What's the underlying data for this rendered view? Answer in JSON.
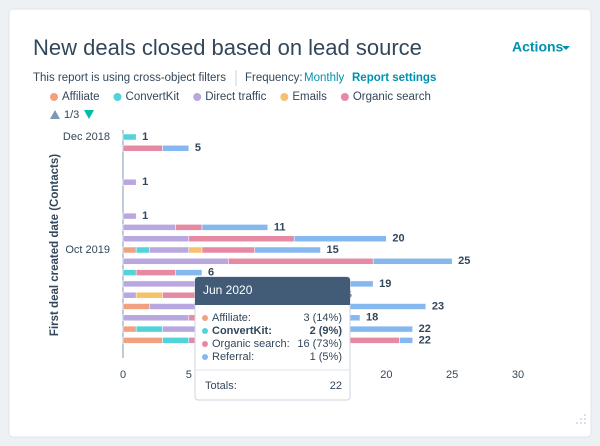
{
  "actions": "Actions",
  "report_note": "This report is using cross-object filters",
  "frequency_label": "Frequency:",
  "frequency_value": "Monthly",
  "report_settings": "Report settings",
  "legend_page": "1/3",
  "chart_data": {
    "type": "stacked-bar-horizontal",
    "title": "New deals closed based on lead source",
    "y_label": "First deal created date (Contacts)",
    "categories": [
      "Dec 2018",
      null,
      null,
      null,
      null,
      null,
      null,
      null,
      null,
      null,
      "Oct 2019",
      null,
      null,
      null,
      null,
      null,
      null,
      null,
      null
    ],
    "series": [
      {
        "name": "Affiliate",
        "color": "#f2a180",
        "values": [
          0,
          0,
          0,
          0,
          0,
          0,
          0,
          0,
          0,
          0,
          1,
          0,
          0,
          0,
          0,
          2,
          0,
          1,
          3
        ]
      },
      {
        "name": "ConvertKit",
        "color": "#51d3d9",
        "values": [
          1,
          0,
          0,
          0,
          0,
          0,
          0,
          0,
          0,
          0,
          1,
          0,
          1,
          0,
          0,
          0,
          0,
          2,
          2
        ]
      },
      {
        "name": "Direct traffic",
        "color": "#b9a8e0",
        "values": [
          0,
          0,
          0,
          0,
          1,
          0,
          0,
          1,
          4,
          5,
          3,
          8,
          0,
          6,
          1,
          4,
          5,
          3,
          0
        ]
      },
      {
        "name": "Emails",
        "color": "#f5c26b",
        "values": [
          0,
          0,
          0,
          0,
          0,
          0,
          0,
          0,
          0,
          0,
          1,
          0,
          0,
          0,
          2,
          1,
          0,
          0,
          0
        ]
      },
      {
        "name": "Organic search",
        "color": "#e68aa3",
        "values": [
          0,
          3,
          0,
          0,
          0,
          0,
          0,
          0,
          2,
          8,
          4,
          11,
          3,
          5,
          5,
          8,
          7,
          8,
          16
        ]
      },
      {
        "name": "Referral",
        "color": "#86b8f0",
        "values": [
          0,
          2,
          0,
          0,
          0,
          0,
          0,
          0,
          5,
          7,
          5,
          6,
          2,
          8,
          8,
          8,
          6,
          8,
          1
        ]
      }
    ],
    "legend_count": 5,
    "totals": [
      1,
      5,
      null,
      null,
      1,
      null,
      null,
      1,
      11,
      20,
      15,
      25,
      6,
      19,
      16,
      23,
      18,
      22,
      22
    ],
    "xlim": [
      0,
      30
    ],
    "xticks": [
      0,
      5,
      10,
      15,
      20,
      25,
      30
    ],
    "tooltip": {
      "row": 18,
      "title": "Jun 2020",
      "rows": [
        {
          "label": "Affiliate:",
          "text": "3 (14%)",
          "series": 0
        },
        {
          "label": "ConvertKit:",
          "text": "2 (9%)",
          "series": 1
        },
        {
          "label": "Organic search:",
          "text": "16 (73%)",
          "series": 4
        },
        {
          "label": "Referral:",
          "text": "1 (5%)",
          "series": 5
        }
      ],
      "bold_row": 1,
      "totals_label": "Totals:",
      "total": 22
    }
  }
}
